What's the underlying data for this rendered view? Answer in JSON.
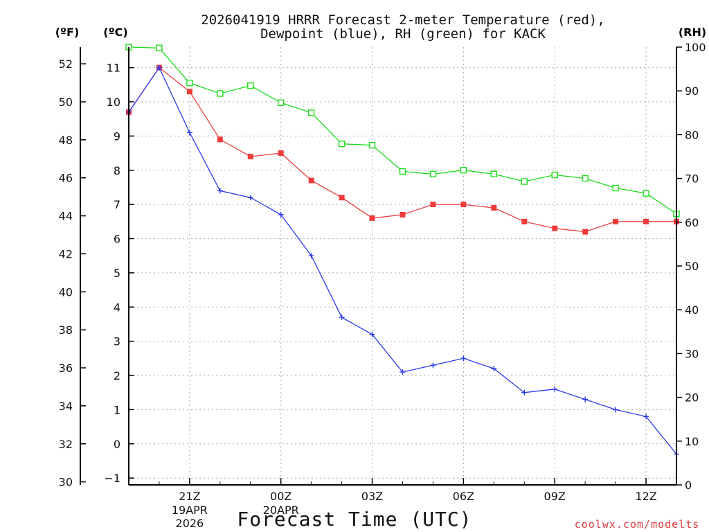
{
  "chart_data": {
    "type": "line",
    "title_line1": "2026041919 HRRR Forecast 2-meter Temperature (red),",
    "title_line2": "Dewpoint (blue), RH (green) for KACK",
    "xlabel": "Forecast Time (UTC)",
    "credit": "coolwx.com/modelts",
    "left_unit_f": "(ºF)",
    "left_unit_c": "(ºC)",
    "right_unit": "(RH)",
    "x_hours": [
      19,
      20,
      21,
      22,
      23,
      24,
      25,
      26,
      27,
      28,
      29,
      30,
      31,
      32,
      33,
      34,
      35,
      36,
      37
    ],
    "x_ticks": [
      {
        "hour": 21,
        "label": "21Z",
        "sub1": "19APR",
        "sub2": "2026"
      },
      {
        "hour": 24,
        "label": "00Z",
        "sub1": "20APR",
        "sub2": ""
      },
      {
        "hour": 27,
        "label": "03Z",
        "sub1": "",
        "sub2": ""
      },
      {
        "hour": 30,
        "label": "06Z",
        "sub1": "",
        "sub2": ""
      },
      {
        "hour": 33,
        "label": "09Z",
        "sub1": "",
        "sub2": ""
      },
      {
        "hour": 36,
        "label": "12Z",
        "sub1": "",
        "sub2": ""
      }
    ],
    "celsius_range": [
      -1.2,
      11.6
    ],
    "celsius_ticks": [
      -1,
      0,
      1,
      2,
      3,
      4,
      5,
      6,
      7,
      8,
      9,
      10,
      11
    ],
    "celsius_tick_labels": [
      "−1",
      "0",
      "1",
      "2",
      "3",
      "4",
      "5",
      "6",
      "7",
      "8",
      "9",
      "10",
      "11"
    ],
    "fahrenheit_ticks": [
      30,
      32,
      34,
      36,
      38,
      40,
      42,
      44,
      46,
      48,
      50,
      52
    ],
    "rh_range": [
      0,
      100
    ],
    "rh_ticks": [
      0,
      10,
      20,
      30,
      40,
      50,
      60,
      70,
      80,
      90,
      100
    ],
    "series": [
      {
        "name": "Temperature",
        "unit": "C",
        "color": "#ee3b3b",
        "marker": "filled-square",
        "values": [
          9.7,
          11.0,
          10.3,
          8.9,
          8.4,
          8.5,
          7.7,
          7.2,
          6.6,
          6.7,
          7.0,
          7.0,
          6.9,
          6.5,
          6.3,
          6.2,
          6.5,
          6.5,
          6.5
        ]
      },
      {
        "name": "Dewpoint",
        "unit": "C",
        "color": "#2a3aee",
        "marker": "plus",
        "values": [
          9.7,
          11.0,
          9.1,
          7.4,
          7.2,
          6.7,
          5.5,
          3.7,
          3.2,
          2.1,
          2.3,
          2.5,
          2.2,
          1.5,
          1.6,
          1.3,
          1.0,
          0.8,
          -0.3
        ]
      },
      {
        "name": "RH",
        "unit": "%",
        "color": "#19dd19",
        "marker": "open-square",
        "values": [
          100,
          99.8,
          91.8,
          89.4,
          91.2,
          87.3,
          85.0,
          77.9,
          77.6,
          71.6,
          71.0,
          71.9,
          71.0,
          69.3,
          70.8,
          70.0,
          67.8,
          66.6,
          61.9
        ]
      }
    ]
  }
}
